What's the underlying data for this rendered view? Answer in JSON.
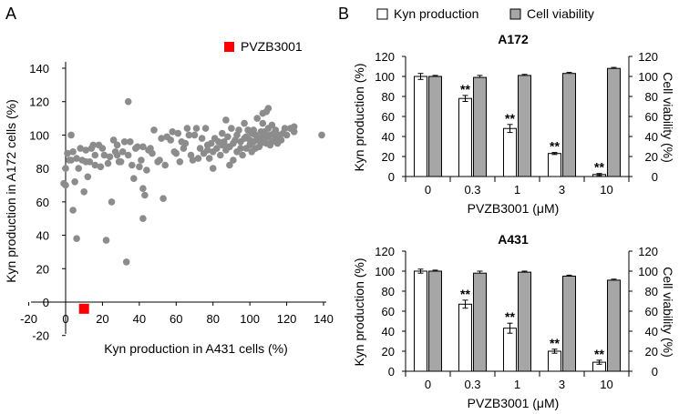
{
  "figure": {
    "panel_a_letter": "A",
    "panel_b_letter": "B"
  },
  "colors": {
    "scatter_point": "#8c8c8c",
    "highlight_point": "#ff0000",
    "kyn_bar": "#ffffff",
    "viability_bar": "#a6a6a6",
    "axis": "#000000"
  },
  "chart_data": [
    {
      "panel": "A",
      "type": "scatter",
      "title": "",
      "xlabel": "Kyn production in A431 cells (%)",
      "ylabel": "Kyn production in A172 cells (%)",
      "xlim": [
        -20,
        140
      ],
      "ylim": [
        -20,
        140
      ],
      "xticks": [
        "-20",
        "0",
        "20",
        "40",
        "60",
        "80",
        "100",
        "120",
        "140"
      ],
      "yticks": [
        "-20",
        "0",
        "20",
        "40",
        "60",
        "80",
        "100",
        "120",
        "140"
      ],
      "legend": [
        {
          "label": "PVZB3001",
          "color": "#ff0000",
          "marker": "square"
        }
      ],
      "highlight": {
        "name": "PVZB3001",
        "x": 10,
        "y": -4
      },
      "points": [
        [
          -1,
          71
        ],
        [
          0,
          70
        ],
        [
          0,
          80
        ],
        [
          1,
          89
        ],
        [
          2,
          85
        ],
        [
          3,
          85
        ],
        [
          3,
          100
        ],
        [
          4,
          55
        ],
        [
          4,
          90
        ],
        [
          5,
          72
        ],
        [
          6,
          38
        ],
        [
          6,
          86
        ],
        [
          7,
          80
        ],
        [
          8,
          92
        ],
        [
          9,
          85
        ],
        [
          10,
          66
        ],
        [
          11,
          84
        ],
        [
          11,
          91
        ],
        [
          12,
          75
        ],
        [
          13,
          84
        ],
        [
          14,
          92
        ],
        [
          15,
          94
        ],
        [
          16,
          88
        ],
        [
          16,
          82
        ],
        [
          18,
          94
        ],
        [
          19,
          81
        ],
        [
          20,
          92
        ],
        [
          21,
          88
        ],
        [
          22,
          37
        ],
        [
          23,
          83
        ],
        [
          24,
          87
        ],
        [
          25,
          60
        ],
        [
          26,
          97
        ],
        [
          27,
          90
        ],
        [
          28,
          88
        ],
        [
          28,
          94
        ],
        [
          29,
          84
        ],
        [
          30,
          84
        ],
        [
          31,
          90
        ],
        [
          32,
          96
        ],
        [
          33,
          24
        ],
        [
          34,
          120
        ],
        [
          34,
          88
        ],
        [
          35,
          96
        ],
        [
          36,
          82
        ],
        [
          37,
          74
        ],
        [
          38,
          92
        ],
        [
          39,
          93
        ],
        [
          40,
          81
        ],
        [
          41,
          85
        ],
        [
          42,
          93
        ],
        [
          42,
          68
        ],
        [
          43,
          64
        ],
        [
          42,
          50
        ],
        [
          44,
          79
        ],
        [
          45,
          91
        ],
        [
          46,
          92
        ],
        [
          47,
          89
        ],
        [
          48,
          103
        ],
        [
          50,
          84
        ],
        [
          51,
          85
        ],
        [
          52,
          98
        ],
        [
          53,
          62
        ],
        [
          54,
          82
        ],
        [
          55,
          99
        ],
        [
          57,
          97
        ],
        [
          58,
          102
        ],
        [
          59,
          90
        ],
        [
          60,
          89
        ],
        [
          61,
          101
        ],
        [
          62,
          84
        ],
        [
          63,
          96
        ],
        [
          64,
          92
        ],
        [
          65,
          95
        ],
        [
          66,
          104
        ],
        [
          67,
          100
        ],
        [
          68,
          88
        ],
        [
          69,
          85
        ],
        [
          70,
          100
        ],
        [
          71,
          104
        ],
        [
          72,
          86
        ],
        [
          73,
          92
        ],
        [
          74,
          98
        ],
        [
          75,
          89
        ],
        [
          76,
          104
        ],
        [
          77,
          91
        ],
        [
          77,
          94
        ],
        [
          78,
          86
        ],
        [
          79,
          95
        ],
        [
          80,
          90
        ],
        [
          80,
          80
        ],
        [
          81,
          98
        ],
        [
          82,
          92
        ],
        [
          83,
          96
        ],
        [
          84,
          88
        ],
        [
          85,
          101
        ],
        [
          85,
          94
        ],
        [
          86,
          96
        ],
        [
          87,
          91
        ],
        [
          87,
          109
        ],
        [
          88,
          99
        ],
        [
          88,
          93
        ],
        [
          89,
          93
        ],
        [
          89,
          82
        ],
        [
          90,
          104
        ],
        [
          91,
          95
        ],
        [
          91,
          85
        ],
        [
          92,
          97
        ],
        [
          93,
          100
        ],
        [
          93,
          90
        ],
        [
          94,
          103
        ],
        [
          95,
          96
        ],
        [
          95,
          92
        ],
        [
          96,
          88
        ],
        [
          97,
          107
        ],
        [
          97,
          98
        ],
        [
          98,
          92
        ],
        [
          98,
          99
        ],
        [
          99,
          103
        ],
        [
          100,
          97
        ],
        [
          100,
          94
        ],
        [
          101,
          101
        ],
        [
          101,
          90
        ],
        [
          102,
          96
        ],
        [
          102,
          103
        ],
        [
          103,
          92
        ],
        [
          103,
          100
        ],
        [
          104,
          97
        ],
        [
          104,
          110
        ],
        [
          105,
          93
        ],
        [
          105,
          98
        ],
        [
          106,
          102
        ],
        [
          106,
          95
        ],
        [
          107,
          100
        ],
        [
          107,
          107
        ],
        [
          107,
          113
        ],
        [
          108,
          97
        ],
        [
          108,
          102
        ],
        [
          109,
          95
        ],
        [
          109,
          114
        ],
        [
          110,
          99
        ],
        [
          110,
          104
        ],
        [
          110,
          116
        ],
        [
          111,
          100
        ],
        [
          111,
          94
        ],
        [
          112,
          106
        ],
        [
          112,
          96
        ],
        [
          113,
          101
        ],
        [
          114,
          98
        ],
        [
          114,
          103
        ],
        [
          115,
          95
        ],
        [
          116,
          100
        ],
        [
          117,
          97
        ],
        [
          118,
          101
        ],
        [
          119,
          104
        ],
        [
          120,
          100
        ],
        [
          122,
          104
        ],
        [
          124,
          105
        ],
        [
          124,
          102
        ],
        [
          139,
          100
        ]
      ]
    },
    {
      "panel": "B",
      "type": "bar",
      "title": "A172",
      "xlabel": "PVZB3001 (μM)",
      "ylabel": "Kyn production (%)",
      "ylabel_right": "Cell viability (%)",
      "categories": [
        "0",
        "0.3",
        "1",
        "3",
        "10"
      ],
      "ylim": [
        0,
        120
      ],
      "yticks": [
        "0",
        "20",
        "40",
        "60",
        "80",
        "100",
        "120"
      ],
      "series": [
        {
          "name": "Kyn production",
          "values": [
            100,
            78,
            48,
            23,
            2
          ],
          "errors": [
            3,
            3,
            4,
            1,
            1
          ],
          "significance": [
            "",
            "**",
            "**",
            "**",
            "**"
          ]
        },
        {
          "name": "Cell viability",
          "values": [
            100,
            99,
            101,
            103,
            108
          ],
          "errors": [
            1,
            2,
            1,
            1,
            1
          ]
        }
      ]
    },
    {
      "panel": "B",
      "type": "bar",
      "title": "A431",
      "xlabel": "PVZB3001 (μM)",
      "ylabel": "Kyn production (%)",
      "ylabel_right": "Cell viability (%)",
      "categories": [
        "0",
        "0.3",
        "1",
        "3",
        "10"
      ],
      "ylim": [
        0,
        120
      ],
      "yticks": [
        "0",
        "20",
        "40",
        "60",
        "80",
        "100",
        "120"
      ],
      "series": [
        {
          "name": "Kyn production",
          "values": [
            100,
            67,
            43,
            20,
            9
          ],
          "errors": [
            2,
            4,
            5,
            2,
            2
          ],
          "significance": [
            "",
            "**",
            "**",
            "**",
            "**"
          ]
        },
        {
          "name": "Cell viability",
          "values": [
            100,
            98,
            99,
            95,
            91
          ],
          "errors": [
            1,
            2,
            1,
            1,
            1
          ]
        }
      ]
    }
  ],
  "legend_b": [
    {
      "label": "Kyn production",
      "swatch": "#ffffff"
    },
    {
      "label": "Cell viability",
      "swatch": "#a6a6a6"
    }
  ]
}
